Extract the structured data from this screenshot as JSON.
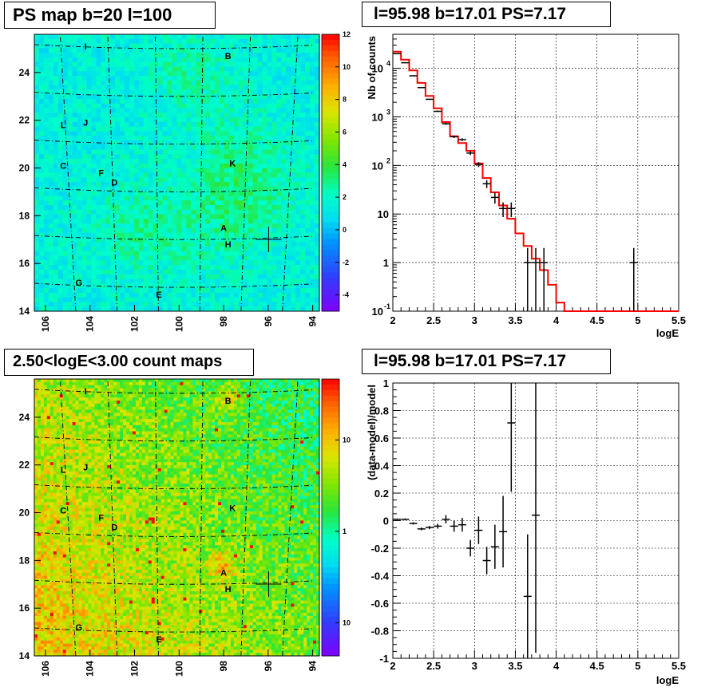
{
  "panels": {
    "top_left_title": "PS map b=20 l=100",
    "top_right_title": "l=95.98 b=17.01 PS=7.17",
    "bottom_left_title": "2.50<logE<3.00 count maps",
    "bottom_right_title": "l=95.98 b=17.01 PS=7.17"
  },
  "chart_data": [
    {
      "type": "heatmap",
      "title": "PS map b=20 l=100",
      "x_ticks": [
        "106",
        "104",
        "102",
        "100",
        "98",
        "96",
        "94"
      ],
      "y_ticks": [
        "14",
        "16",
        "18",
        "20",
        "22",
        "24"
      ],
      "xlim": [
        106.5,
        93.7
      ],
      "ylim": [
        14,
        25.6
      ],
      "colorbar_ticks": [
        "12",
        "10",
        "8",
        "6",
        "4",
        "2",
        "0",
        "-2",
        "-4"
      ],
      "colorbar_range": [
        -5,
        12
      ],
      "colorbar_scale": "linear",
      "sources": [
        {
          "label": "I",
          "l": 104.2,
          "b": 25.1
        },
        {
          "label": "B",
          "l": 97.8,
          "b": 24.7
        },
        {
          "label": "L",
          "l": 105.2,
          "b": 21.8
        },
        {
          "label": "J",
          "l": 104.2,
          "b": 21.9
        },
        {
          "label": "C",
          "l": 105.2,
          "b": 20.1
        },
        {
          "label": "K",
          "l": 97.6,
          "b": 20.2
        },
        {
          "label": "F",
          "l": 103.5,
          "b": 19.8
        },
        {
          "label": "D",
          "l": 102.9,
          "b": 19.4
        },
        {
          "label": "A",
          "l": 98.0,
          "b": 17.5
        },
        {
          "label": "H",
          "l": 97.8,
          "b": 16.8
        },
        {
          "label": "G",
          "l": 104.5,
          "b": 15.2
        },
        {
          "label": "E",
          "l": 100.9,
          "b": 14.7
        }
      ],
      "marker": {
        "l": 95.98,
        "b": 17.01
      }
    },
    {
      "type": "line",
      "title": "l=95.98 b=17.01 PS=7.17",
      "xlabel": "logE",
      "ylabel": "Nb of counts",
      "xlim": [
        2,
        5.5
      ],
      "ylim": [
        0.1,
        50000
      ],
      "y_scale": "log",
      "x_ticks": [
        "2",
        "2.5",
        "3",
        "3.5",
        "4",
        "4.5",
        "5",
        "5.5"
      ],
      "y_ticks": [
        "10^-1",
        "1",
        "10",
        "10^2",
        "10^3",
        "10^4"
      ],
      "grid": true,
      "data_points": [
        {
          "x": 2.05,
          "y": 20000
        },
        {
          "x": 2.15,
          "y": 13000
        },
        {
          "x": 2.25,
          "y": 7000
        },
        {
          "x": 2.35,
          "y": 4000
        },
        {
          "x": 2.45,
          "y": 2300
        },
        {
          "x": 2.55,
          "y": 1300
        },
        {
          "x": 2.65,
          "y": 720
        },
        {
          "x": 2.75,
          "y": 390
        },
        {
          "x": 2.85,
          "y": 340
        },
        {
          "x": 2.95,
          "y": 180
        },
        {
          "x": 3.05,
          "y": 105
        },
        {
          "x": 3.15,
          "y": 42
        },
        {
          "x": 3.25,
          "y": 22
        },
        {
          "x": 3.35,
          "y": 13
        },
        {
          "x": 3.45,
          "y": 13
        },
        {
          "x": 3.65,
          "y": 1
        },
        {
          "x": 3.75,
          "y": 1
        },
        {
          "x": 3.85,
          "y": 1
        },
        {
          "x": 4.95,
          "y": 1
        }
      ],
      "model_steps": [
        {
          "x0": 2.0,
          "x1": 2.1,
          "y": 22000
        },
        {
          "x0": 2.1,
          "x1": 2.2,
          "y": 15000
        },
        {
          "x0": 2.2,
          "x1": 2.3,
          "y": 9000
        },
        {
          "x0": 2.3,
          "x1": 2.4,
          "y": 5000
        },
        {
          "x0": 2.4,
          "x1": 2.5,
          "y": 2700
        },
        {
          "x0": 2.5,
          "x1": 2.6,
          "y": 1500
        },
        {
          "x0": 2.6,
          "x1": 2.7,
          "y": 780
        },
        {
          "x0": 2.7,
          "x1": 2.8,
          "y": 400
        },
        {
          "x0": 2.8,
          "x1": 2.9,
          "y": 290
        },
        {
          "x0": 2.9,
          "x1": 3.0,
          "y": 200
        },
        {
          "x0": 3.0,
          "x1": 3.1,
          "y": 110
        },
        {
          "x0": 3.1,
          "x1": 3.2,
          "y": 55
        },
        {
          "x0": 3.2,
          "x1": 3.3,
          "y": 28
        },
        {
          "x0": 3.3,
          "x1": 3.4,
          "y": 15
        },
        {
          "x0": 3.4,
          "x1": 3.5,
          "y": 8
        },
        {
          "x0": 3.5,
          "x1": 3.6,
          "y": 4
        },
        {
          "x0": 3.6,
          "x1": 3.7,
          "y": 2.2
        },
        {
          "x0": 3.7,
          "x1": 3.8,
          "y": 1.2
        },
        {
          "x0": 3.8,
          "x1": 3.9,
          "y": 0.7
        },
        {
          "x0": 3.9,
          "x1": 4.0,
          "y": 0.35
        },
        {
          "x0": 4.0,
          "x1": 4.1,
          "y": 0.15
        },
        {
          "x0": 4.1,
          "x1": 5.5,
          "y": 0.1
        }
      ],
      "series": [
        {
          "name": "data",
          "color": "#000000"
        },
        {
          "name": "model",
          "color": "#ff0000"
        }
      ]
    },
    {
      "type": "heatmap",
      "title": "2.50<logE<3.00 count maps",
      "x_ticks": [
        "106",
        "104",
        "102",
        "100",
        "98",
        "96",
        "94"
      ],
      "y_ticks": [
        "14",
        "16",
        "18",
        "20",
        "22",
        "24"
      ],
      "xlim": [
        106.5,
        93.7
      ],
      "ylim": [
        14,
        25.6
      ],
      "colorbar_ticks": [
        "10",
        "1",
        "10^-1"
      ],
      "colorbar_scale": "log",
      "sources": [
        {
          "label": "I",
          "l": 104.2,
          "b": 25.1
        },
        {
          "label": "B",
          "l": 97.8,
          "b": 24.7
        },
        {
          "label": "L",
          "l": 105.2,
          "b": 21.8
        },
        {
          "label": "J",
          "l": 104.2,
          "b": 21.9
        },
        {
          "label": "C",
          "l": 105.2,
          "b": 20.1
        },
        {
          "label": "K",
          "l": 97.6,
          "b": 20.2
        },
        {
          "label": "F",
          "l": 103.5,
          "b": 19.8
        },
        {
          "label": "D",
          "l": 102.9,
          "b": 19.4
        },
        {
          "label": "A",
          "l": 98.0,
          "b": 17.5
        },
        {
          "label": "H",
          "l": 97.8,
          "b": 16.8
        },
        {
          "label": "G",
          "l": 104.5,
          "b": 15.2
        },
        {
          "label": "E",
          "l": 100.9,
          "b": 14.7
        }
      ],
      "marker": {
        "l": 95.98,
        "b": 17.01
      }
    },
    {
      "type": "scatter",
      "title": "l=95.98 b=17.01 PS=7.17",
      "xlabel": "logE",
      "ylabel": "(data-model)/model",
      "xlim": [
        2,
        5.5
      ],
      "ylim": [
        -1,
        1
      ],
      "x_ticks": [
        "2",
        "2.5",
        "3",
        "3.5",
        "4",
        "4.5",
        "5",
        "5.5"
      ],
      "y_ticks": [
        "-1",
        "-0.8",
        "-0.6",
        "-0.4",
        "-0.2",
        "0",
        "0.2",
        "0.4",
        "0.6",
        "0.8",
        "1"
      ],
      "grid": true,
      "data_points": [
        {
          "x": 2.05,
          "y": 0.01,
          "err": 0.005
        },
        {
          "x": 2.15,
          "y": 0.01,
          "err": 0.006
        },
        {
          "x": 2.25,
          "y": -0.02,
          "err": 0.008
        },
        {
          "x": 2.35,
          "y": -0.06,
          "err": 0.01
        },
        {
          "x": 2.45,
          "y": -0.05,
          "err": 0.012
        },
        {
          "x": 2.55,
          "y": -0.04,
          "err": 0.018
        },
        {
          "x": 2.65,
          "y": 0.01,
          "err": 0.03
        },
        {
          "x": 2.75,
          "y": -0.04,
          "err": 0.04
        },
        {
          "x": 2.85,
          "y": -0.03,
          "err": 0.05
        },
        {
          "x": 2.95,
          "y": -0.2,
          "err": 0.06
        },
        {
          "x": 3.05,
          "y": -0.07,
          "err": 0.1
        },
        {
          "x": 3.15,
          "y": -0.29,
          "err": 0.1
        },
        {
          "x": 3.25,
          "y": -0.19,
          "err": 0.16
        },
        {
          "x": 3.35,
          "y": -0.08,
          "err": 0.26
        },
        {
          "x": 3.45,
          "y": 0.71,
          "err": 0.5
        },
        {
          "x": 3.65,
          "y": -0.55,
          "err": 0.45
        },
        {
          "x": 3.75,
          "y": 0.04,
          "err": 1.0
        }
      ]
    }
  ]
}
